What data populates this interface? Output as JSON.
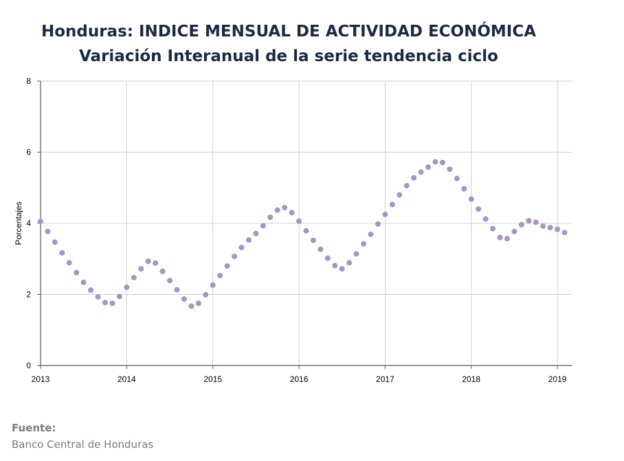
{
  "header": {
    "title_prefix": "Honduras: ",
    "title_main": "INDICE MENSUAL DE ACTIVIDAD ECONÓMICA",
    "subtitle": "Variación Interanual de la serie tendencia ciclo"
  },
  "footer": {
    "source_label": "Fuente:",
    "source_text": "Banco Central de Honduras"
  },
  "colors": {
    "point": "#a794c6",
    "grid": "#d0d0d0",
    "axis": "#5a5a5a",
    "text": "#000000",
    "title": "#1b2a44"
  },
  "chart_data": {
    "type": "scatter",
    "title": "Honduras: INDICE MENSUAL DE ACTIVIDAD ECONÓMICA",
    "subtitle": "Variación Interanual de la serie tendencia ciclo",
    "xlabel": "",
    "ylabel": "Porcentajes",
    "xlim": [
      "2013-01",
      "2019-03"
    ],
    "ylim": [
      0,
      8
    ],
    "x_ticks": [
      "2013",
      "2014",
      "2015",
      "2016",
      "2017",
      "2018",
      "2019"
    ],
    "y_ticks": [
      0,
      2,
      4,
      6,
      8
    ],
    "grid": true,
    "legend": "none",
    "series": [
      {
        "x": [
          "2013-01",
          "2013-02",
          "2013-03",
          "2013-04",
          "2013-05",
          "2013-06",
          "2013-07",
          "2013-08",
          "2013-09",
          "2013-10",
          "2013-11",
          "2013-12",
          "2014-01",
          "2014-02",
          "2014-03",
          "2014-04",
          "2014-05",
          "2014-06",
          "2014-07",
          "2014-08",
          "2014-09",
          "2014-10",
          "2014-11",
          "2014-12",
          "2015-01",
          "2015-02",
          "2015-03",
          "2015-04",
          "2015-05",
          "2015-06",
          "2015-07",
          "2015-08",
          "2015-09",
          "2015-10",
          "2015-11",
          "2015-12",
          "2016-01",
          "2016-02",
          "2016-03",
          "2016-04",
          "2016-05",
          "2016-06",
          "2016-07",
          "2016-08",
          "2016-09",
          "2016-10",
          "2016-11",
          "2016-12",
          "2017-01",
          "2017-02",
          "2017-03",
          "2017-04",
          "2017-05",
          "2017-06",
          "2017-07",
          "2017-08",
          "2017-09",
          "2017-10",
          "2017-11",
          "2017-12",
          "2018-01",
          "2018-02",
          "2018-03",
          "2018-04",
          "2018-05",
          "2018-06",
          "2018-07",
          "2018-08",
          "2018-09",
          "2018-10",
          "2018-11",
          "2018-12",
          "2019-01",
          "2019-02"
        ],
        "values": [
          4.05,
          3.77,
          3.47,
          3.17,
          2.89,
          2.61,
          2.34,
          2.12,
          1.93,
          1.77,
          1.75,
          1.94,
          2.2,
          2.47,
          2.72,
          2.93,
          2.88,
          2.65,
          2.39,
          2.13,
          1.87,
          1.67,
          1.75,
          1.99,
          2.26,
          2.53,
          2.8,
          3.07,
          3.32,
          3.53,
          3.71,
          3.93,
          4.17,
          4.37,
          4.44,
          4.3,
          4.06,
          3.79,
          3.52,
          3.27,
          3.02,
          2.81,
          2.72,
          2.89,
          3.14,
          3.42,
          3.69,
          3.98,
          4.25,
          4.53,
          4.8,
          5.06,
          5.28,
          5.44,
          5.58,
          5.73,
          5.71,
          5.52,
          5.26,
          4.97,
          4.68,
          4.4,
          4.12,
          3.85,
          3.6,
          3.57,
          3.77,
          3.96,
          4.07,
          4.03,
          3.92,
          3.88,
          3.83,
          3.74
        ]
      }
    ]
  }
}
